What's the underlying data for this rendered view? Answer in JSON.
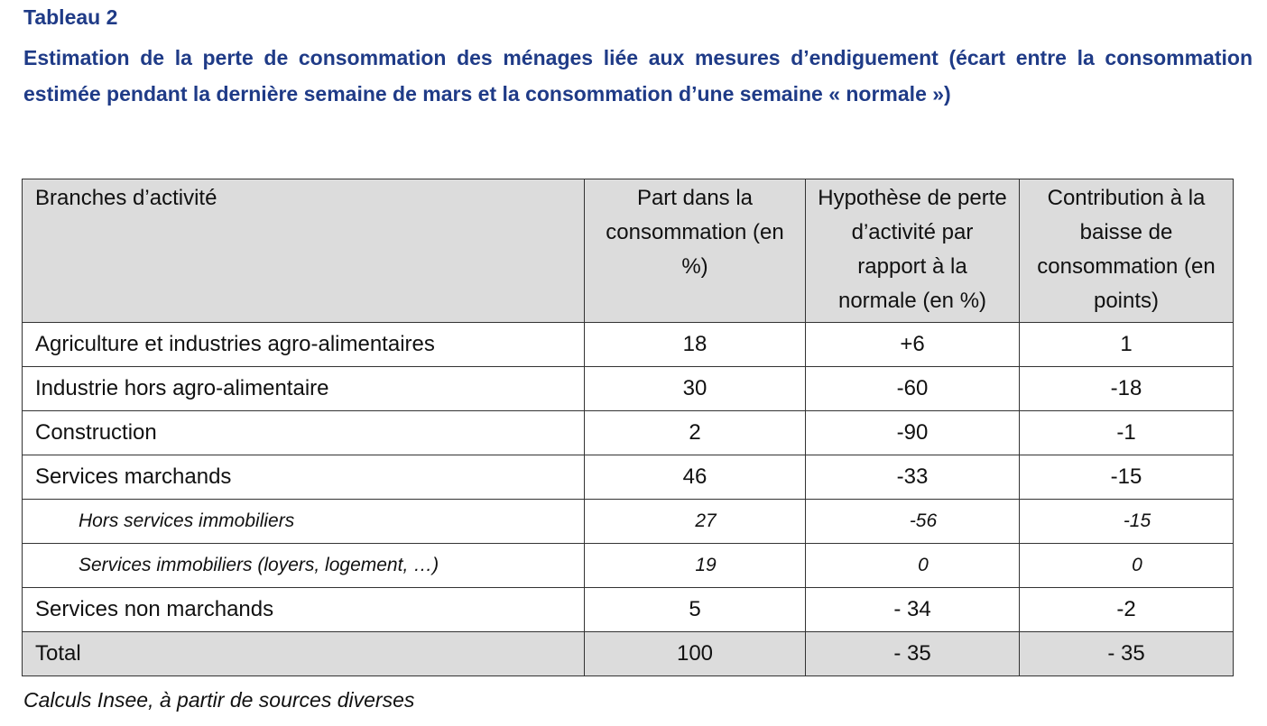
{
  "document": {
    "label": "Tableau 2",
    "title": "Estimation de la perte de consommation des ménages liée aux mesures d’endiguement (écart entre la consommation estimée pendant la dernière semaine de mars et la consommation d’une semaine « normale »)",
    "source": "Calculs Insee, à partir de sources diverses"
  },
  "table": {
    "headers": [
      "Branches d’activité",
      "Part dans la consommation (en %)",
      "Hypothèse de perte d’activité par rapport à la normale (en %)",
      "Contribution à la baisse de consommation (en points)"
    ],
    "rows": [
      {
        "branch": "Agriculture et industries agro-alimentaires",
        "share": "18",
        "loss": "+6",
        "contribution": "1"
      },
      {
        "branch": "Industrie hors agro-alimentaire",
        "share": "30",
        "loss": "-60",
        "contribution": "-18"
      },
      {
        "branch": "Construction",
        "share": "2",
        "loss": "-90",
        "contribution": "-1"
      },
      {
        "branch": "Services marchands",
        "share": "46",
        "loss": "-33",
        "contribution": "-15"
      },
      {
        "branch": "Hors services immobiliers",
        "share": "27",
        "loss": "-56",
        "contribution": "-15"
      },
      {
        "branch": "Services immobiliers (loyers, logement, …)",
        "share": "19",
        "loss": "0",
        "contribution": "0"
      },
      {
        "branch": "Services non marchands",
        "share": "5",
        "loss": "- 34",
        "contribution": "-2"
      },
      {
        "branch": "Total",
        "share": "100",
        "loss": "- 35",
        "contribution": "- 35"
      }
    ]
  }
}
